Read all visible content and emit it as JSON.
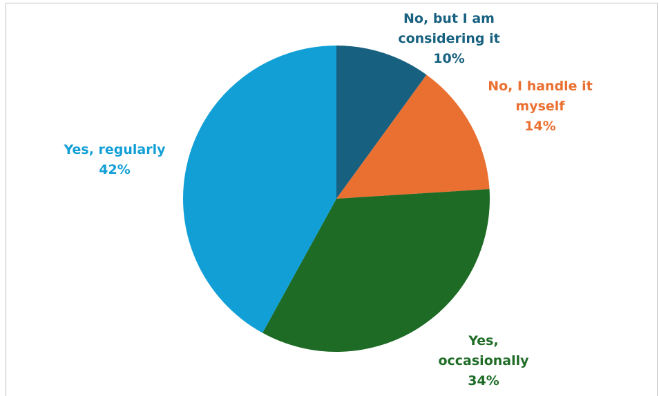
{
  "chart_data": {
    "type": "pie",
    "title": "",
    "start_angle_deg": 0,
    "direction": "clockwise",
    "slices": [
      {
        "label": [
          "No, but I am",
          "considering it"
        ],
        "value_label": "10%",
        "value": 10,
        "color": "#17607f",
        "label_color": "#17607f"
      },
      {
        "label": [
          "No, I handle it",
          "myself"
        ],
        "value_label": "14%",
        "value": 14,
        "color": "#ea7031",
        "label_color": "#ea7031"
      },
      {
        "label": [
          "Yes,",
          "occasionally"
        ],
        "value_label": "34%",
        "value": 34,
        "color": "#1e6b26",
        "label_color": "#1e6b26"
      },
      {
        "label": [
          "Yes, regularly"
        ],
        "value_label": "42%",
        "value": 42,
        "color": "#119fd6",
        "label_color": "#119fd6"
      }
    ]
  }
}
